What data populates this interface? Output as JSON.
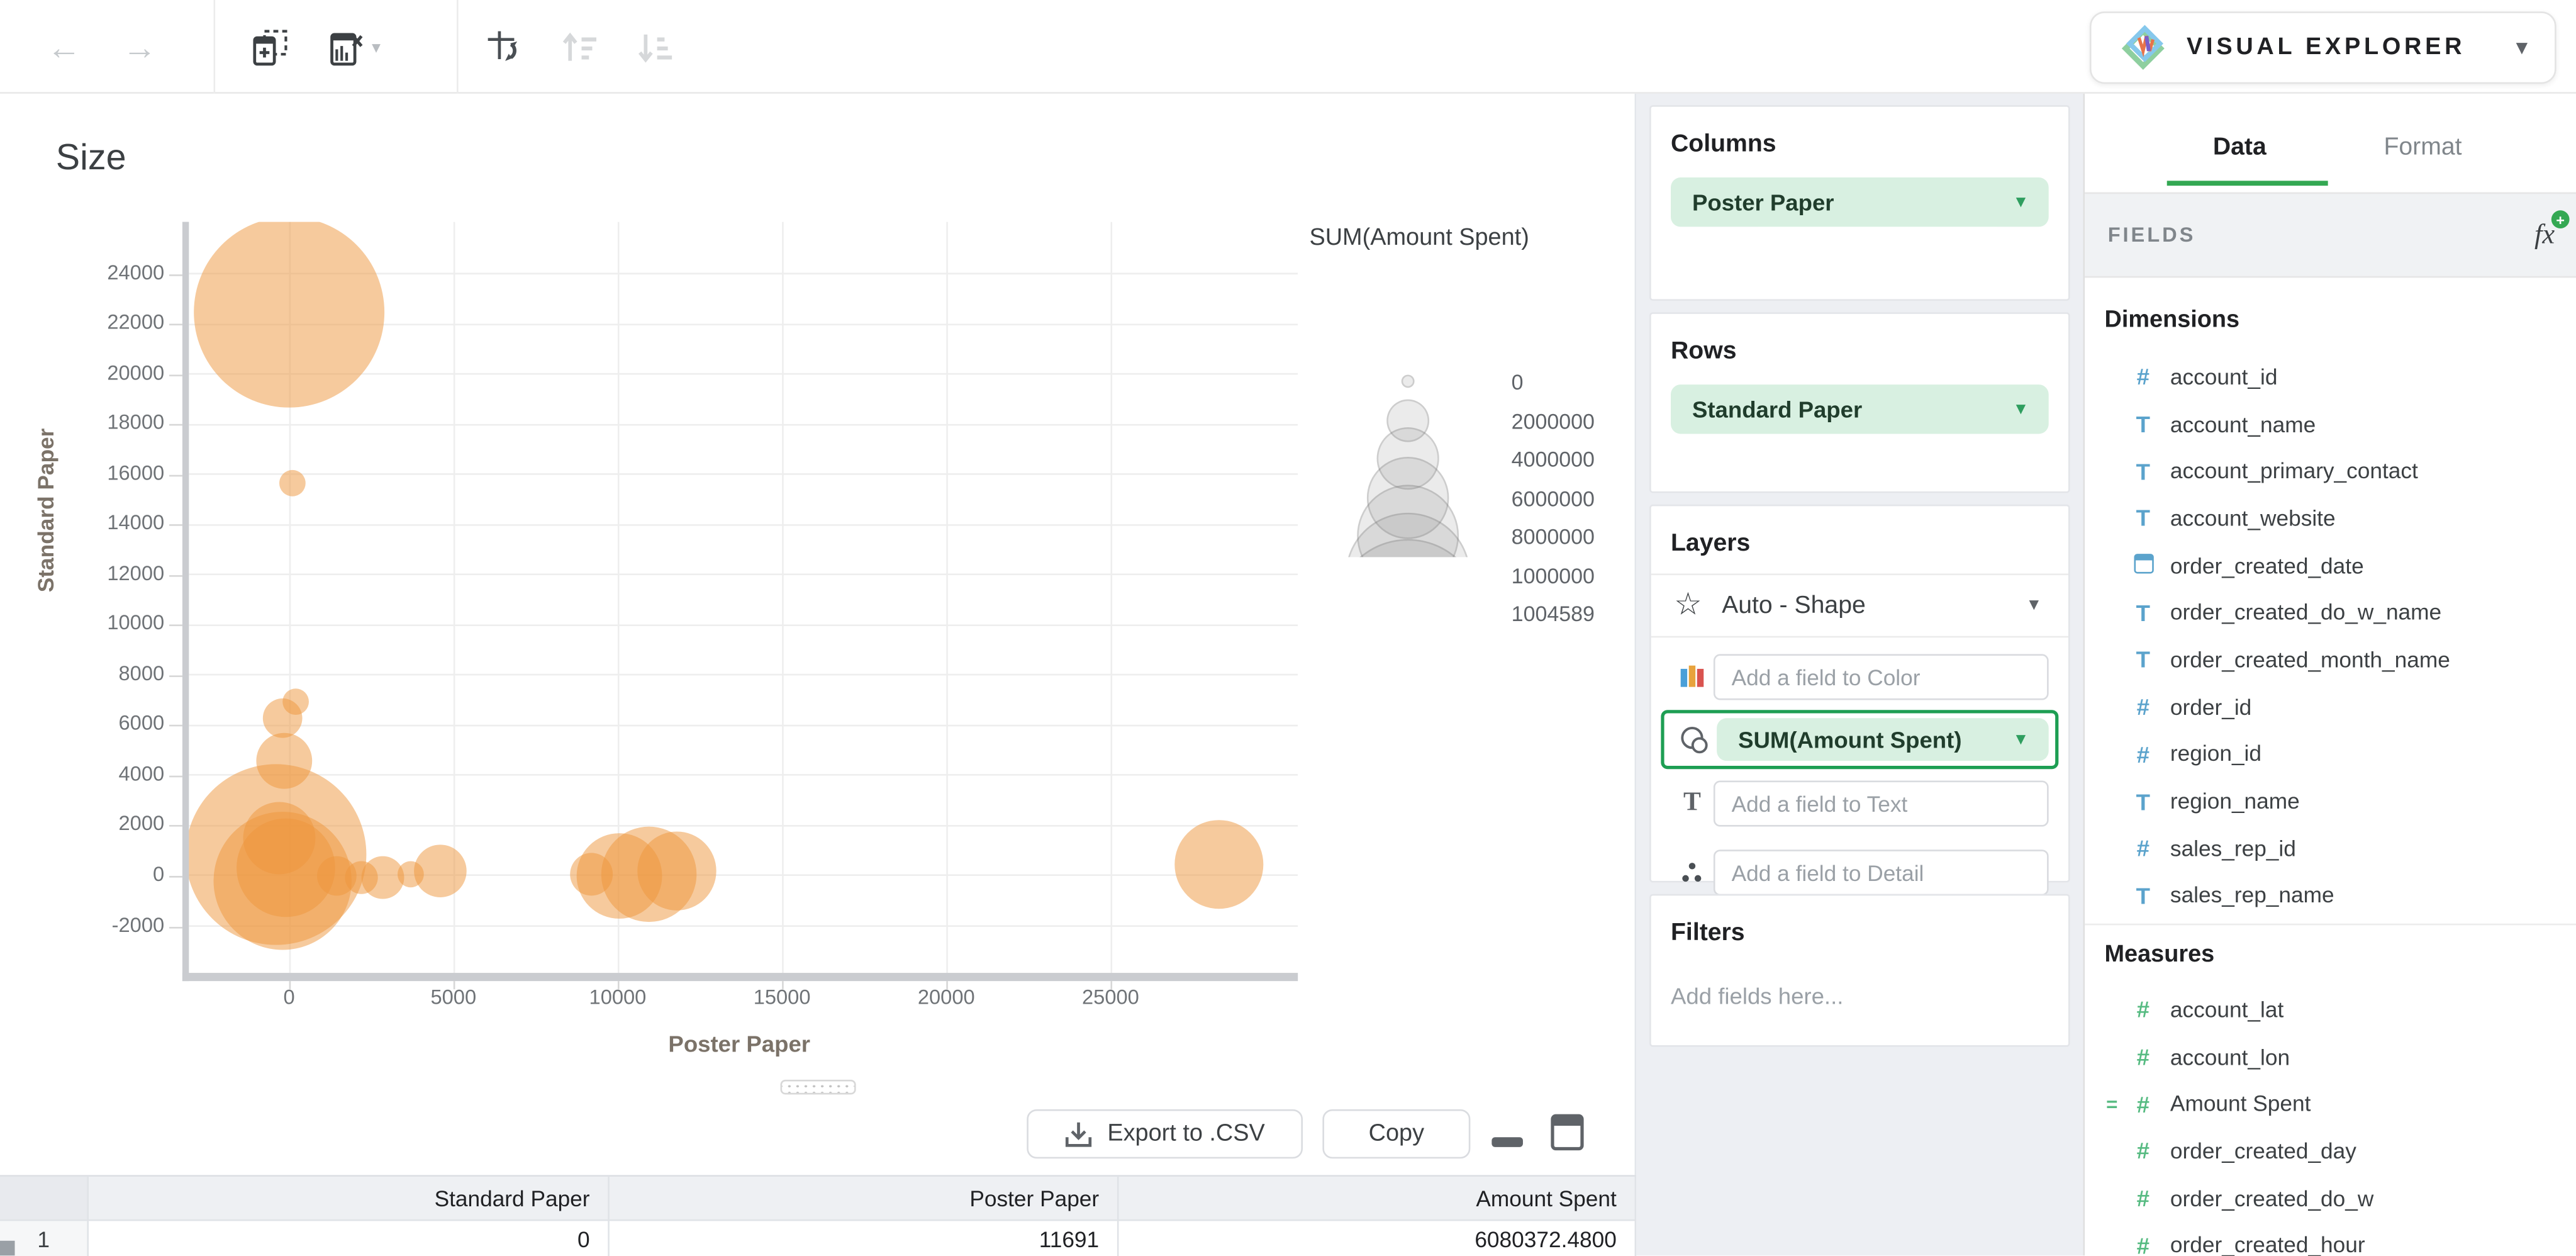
{
  "toolbar": {
    "back": "back",
    "forward": "forward",
    "add_chart": "add chart card",
    "remove_chart": "remove chart",
    "swap_axes": "swap axes",
    "sort_asc": "sort ascending",
    "sort_desc": "sort descending"
  },
  "app_switcher": {
    "label": "VISUAL EXPLORER"
  },
  "chart": {
    "title": "Size",
    "x_axis": {
      "title": "Poster Paper"
    },
    "y_axis": {
      "title": "Standard Paper"
    },
    "legend": {
      "title": "SUM(Amount Spent)"
    }
  },
  "chart_data": {
    "type": "scatter-bubble",
    "title": "Size",
    "xlabel": "Poster Paper",
    "ylabel": "Standard Paper",
    "x_ticks": [
      0,
      5000,
      10000,
      15000,
      20000,
      25000
    ],
    "y_ticks": [
      24000,
      22000,
      20000,
      18000,
      16000,
      14000,
      12000,
      10000,
      8000,
      6000,
      4000,
      2000,
      0,
      -2000
    ],
    "axes": {
      "x": {
        "min": -3050,
        "max": 30700
      },
      "y": {
        "min": -3865,
        "max": 26070
      }
    },
    "grid": true,
    "series_color": "#ee963c",
    "bubbles": [
      {
        "x": 0,
        "y": 22450,
        "r": 58
      },
      {
        "x": 100,
        "y": 15650,
        "r": 8
      },
      {
        "x": 200,
        "y": 6940,
        "r": 8
      },
      {
        "x": -200,
        "y": 6285,
        "r": 12
      },
      {
        "x": -150,
        "y": 4580,
        "r": 17
      },
      {
        "x": -400,
        "y": 850,
        "r": 55
      },
      {
        "x": -200,
        "y": -200,
        "r": 42
      },
      {
        "x": -100,
        "y": 350,
        "r": 30
      },
      {
        "x": -300,
        "y": 1500,
        "r": 22
      },
      {
        "x": 1450,
        "y": 0,
        "r": 12
      },
      {
        "x": 2200,
        "y": -65,
        "r": 10
      },
      {
        "x": 2850,
        "y": -65,
        "r": 13
      },
      {
        "x": 3700,
        "y": 65,
        "r": 8
      },
      {
        "x": 4600,
        "y": 200,
        "r": 16
      },
      {
        "x": 9200,
        "y": 65,
        "r": 13
      },
      {
        "x": 10050,
        "y": 0,
        "r": 26
      },
      {
        "x": 10950,
        "y": 65,
        "r": 29
      },
      {
        "x": 11800,
        "y": 200,
        "r": 24
      },
      {
        "x": 28300,
        "y": 450,
        "r": 27
      }
    ],
    "legend": {
      "title": "SUM(Amount Spent)",
      "items": [
        {
          "label": "0",
          "r": 4
        },
        {
          "label": "2000000",
          "r": 13
        },
        {
          "label": "4000000",
          "r": 19
        },
        {
          "label": "6000000",
          "r": 25
        },
        {
          "label": "8000000",
          "r": 31
        },
        {
          "label": "1000000",
          "r": 38
        },
        {
          "label": "1004589",
          "r": 45
        }
      ]
    }
  },
  "panels": {
    "columns": {
      "title": "Columns",
      "pill": "Poster Paper"
    },
    "rows": {
      "title": "Rows",
      "pill": "Standard Paper"
    },
    "layers": {
      "title": "Layers",
      "shape_label": "Auto - Shape",
      "color_placeholder": "Add a field to Color",
      "size_pill": "SUM(Amount Spent)",
      "text_placeholder": "Add a field to Text",
      "detail_placeholder": "Add a field to Detail"
    },
    "filters": {
      "title": "Filters",
      "placeholder": "Add fields here..."
    }
  },
  "fields_panel": {
    "tabs": {
      "data": "Data",
      "format": "Format"
    },
    "active_tab": "Data",
    "header": "FIELDS",
    "dimensions": {
      "title": "Dimensions",
      "items": [
        {
          "name": "account_id",
          "type": "number"
        },
        {
          "name": "account_name",
          "type": "text"
        },
        {
          "name": "account_primary_contact",
          "type": "text"
        },
        {
          "name": "account_website",
          "type": "text"
        },
        {
          "name": "order_created_date",
          "type": "date"
        },
        {
          "name": "order_created_do_w_name",
          "type": "text"
        },
        {
          "name": "order_created_month_name",
          "type": "text"
        },
        {
          "name": "order_id",
          "type": "number"
        },
        {
          "name": "region_id",
          "type": "number"
        },
        {
          "name": "region_name",
          "type": "text"
        },
        {
          "name": "sales_rep_id",
          "type": "number"
        },
        {
          "name": "sales_rep_name",
          "type": "text"
        }
      ]
    },
    "measures": {
      "title": "Measures",
      "items": [
        {
          "name": "account_lat",
          "type": "number"
        },
        {
          "name": "account_lon",
          "type": "number"
        },
        {
          "name": "Amount Spent",
          "type": "number",
          "calculated": true
        },
        {
          "name": "order_created_day",
          "type": "number"
        },
        {
          "name": "order_created_do_w",
          "type": "number"
        },
        {
          "name": "order_created_hour",
          "type": "number"
        }
      ]
    }
  },
  "table": {
    "headers": [
      "",
      "Standard Paper",
      "Poster Paper",
      "Amount Spent"
    ],
    "rows": [
      [
        "1",
        "0",
        "11691",
        "6080372.4800"
      ]
    ]
  },
  "actions": {
    "export_label": "Export to .CSV",
    "copy_label": "Copy"
  },
  "colors": {
    "accent_green": "#34a853",
    "pill_bg": "#d8f0e1",
    "pill_caret": "#2f9e5f",
    "selected_border": "#1d9e53",
    "bubble": "#ee963c",
    "dimension_icon": "#5ba3cc",
    "measure_icon": "#57bb82"
  }
}
